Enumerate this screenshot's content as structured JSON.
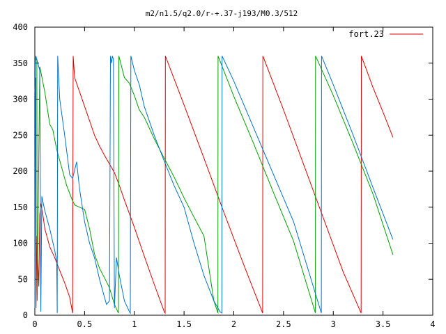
{
  "chart_data": {
    "type": "line",
    "title": "m2/n1.5/q2.0/r-+.37-j193/M0.3/512",
    "xlabel": "",
    "ylabel": "",
    "xlim": [
      0,
      4
    ],
    "ylim": [
      0,
      400
    ],
    "x_ticks": [
      0,
      0.5,
      1,
      1.5,
      2,
      2.5,
      3,
      3.5,
      4
    ],
    "x_tick_labels": [
      "0",
      "0.5",
      "1",
      "1.5",
      "2",
      "2.5",
      "3",
      "3.5",
      "4"
    ],
    "y_ticks": [
      0,
      50,
      100,
      150,
      200,
      250,
      300,
      350,
      400
    ],
    "y_tick_labels": [
      "0",
      "50",
      "100",
      "150",
      "200",
      "250",
      "300",
      "350",
      "400"
    ],
    "grid": false,
    "legend": {
      "position": "top-right",
      "entries": [
        "fort.23"
      ]
    },
    "series": [
      {
        "name": "fort.23",
        "color": "#e00000",
        "x": [
          0,
          0.01,
          0.012,
          0.02,
          0.022,
          0.04,
          0.05,
          0.06,
          0.08,
          0.1,
          0.15,
          0.2,
          0.25,
          0.3,
          0.35,
          0.38,
          0.385,
          0.4,
          0.45,
          0.5,
          0.55,
          0.6,
          0.65,
          0.7,
          0.75,
          0.8,
          0.85,
          0.9,
          1.0,
          1.1,
          1.2,
          1.3,
          1.31,
          1.312,
          1.5,
          1.7,
          1.9,
          2.1,
          2.29,
          2.292,
          2.5,
          2.7,
          2.9,
          3.1,
          3.28,
          3.282,
          3.4,
          3.5,
          3.6
        ],
        "y": [
          310,
          330,
          10,
          110,
          100,
          40,
          140,
          155,
          140,
          120,
          95,
          80,
          62,
          45,
          25,
          3,
          360,
          330,
          310,
          290,
          270,
          250,
          235,
          222,
          210,
          198,
          180,
          160,
          122,
          82,
          43,
          5,
          3,
          360,
          292,
          218,
          143,
          70,
          3,
          360,
          285,
          210,
          135,
          60,
          3,
          360,
          316,
          282,
          247
        ]
      },
      {
        "name": "",
        "color": "#00a000",
        "x": [
          0,
          0.02,
          0.024,
          0.05,
          0.1,
          0.15,
          0.18,
          0.22,
          0.27,
          0.32,
          0.37,
          0.4,
          0.45,
          0.5,
          0.55,
          0.6,
          0.65,
          0.7,
          0.75,
          0.8,
          0.84,
          0.845,
          0.9,
          0.95,
          1.0,
          1.05,
          1.1,
          1.2,
          1.3,
          1.4,
          1.5,
          1.6,
          1.7,
          1.8,
          1.84,
          1.842,
          2.0,
          2.2,
          2.4,
          2.6,
          2.82,
          2.822,
          3.0,
          3.2,
          3.4,
          3.6
        ],
        "y": [
          355,
          355,
          20,
          345,
          310,
          265,
          258,
          230,
          205,
          180,
          162,
          153,
          150,
          147,
          120,
          85,
          65,
          52,
          38,
          15,
          3,
          360,
          330,
          322,
          305,
          285,
          275,
          245,
          218,
          192,
          163,
          136,
          110,
          20,
          3,
          360,
          304,
          238,
          170,
          103,
          3,
          360,
          305,
          238,
          168,
          84
        ]
      },
      {
        "name": "",
        "color": "#0070d0",
        "x": [
          0,
          0.005,
          0.01,
          0.05,
          0.06,
          0.07,
          0.1,
          0.15,
          0.2,
          0.22,
          0.225,
          0.23,
          0.25,
          0.3,
          0.35,
          0.38,
          0.42,
          0.45,
          0.5,
          0.55,
          0.6,
          0.65,
          0.7,
          0.72,
          0.75,
          0.76,
          0.77,
          0.78,
          0.79,
          0.8,
          0.82,
          0.85,
          0.9,
          0.95,
          0.96,
          0.965,
          1.0,
          1.05,
          1.1,
          1.2,
          1.3,
          1.4,
          1.5,
          1.6,
          1.7,
          1.8,
          1.86,
          1.88,
          1.882,
          2.0,
          2.2,
          2.4,
          2.6,
          2.88,
          2.882,
          3.0,
          3.2,
          3.4,
          3.6
        ],
        "y": [
          10,
          350,
          360,
          340,
          5,
          165,
          145,
          120,
          90,
          75,
          3,
          360,
          300,
          250,
          195,
          190,
          213,
          175,
          130,
          100,
          80,
          50,
          25,
          15,
          20,
          360,
          350,
          360,
          355,
          10,
          80,
          55,
          20,
          5,
          3,
          360,
          340,
          320,
          290,
          250,
          214,
          180,
          150,
          100,
          55,
          20,
          5,
          3,
          360,
          325,
          260,
          195,
          130,
          3,
          360,
          320,
          250,
          177,
          105
        ]
      }
    ]
  }
}
